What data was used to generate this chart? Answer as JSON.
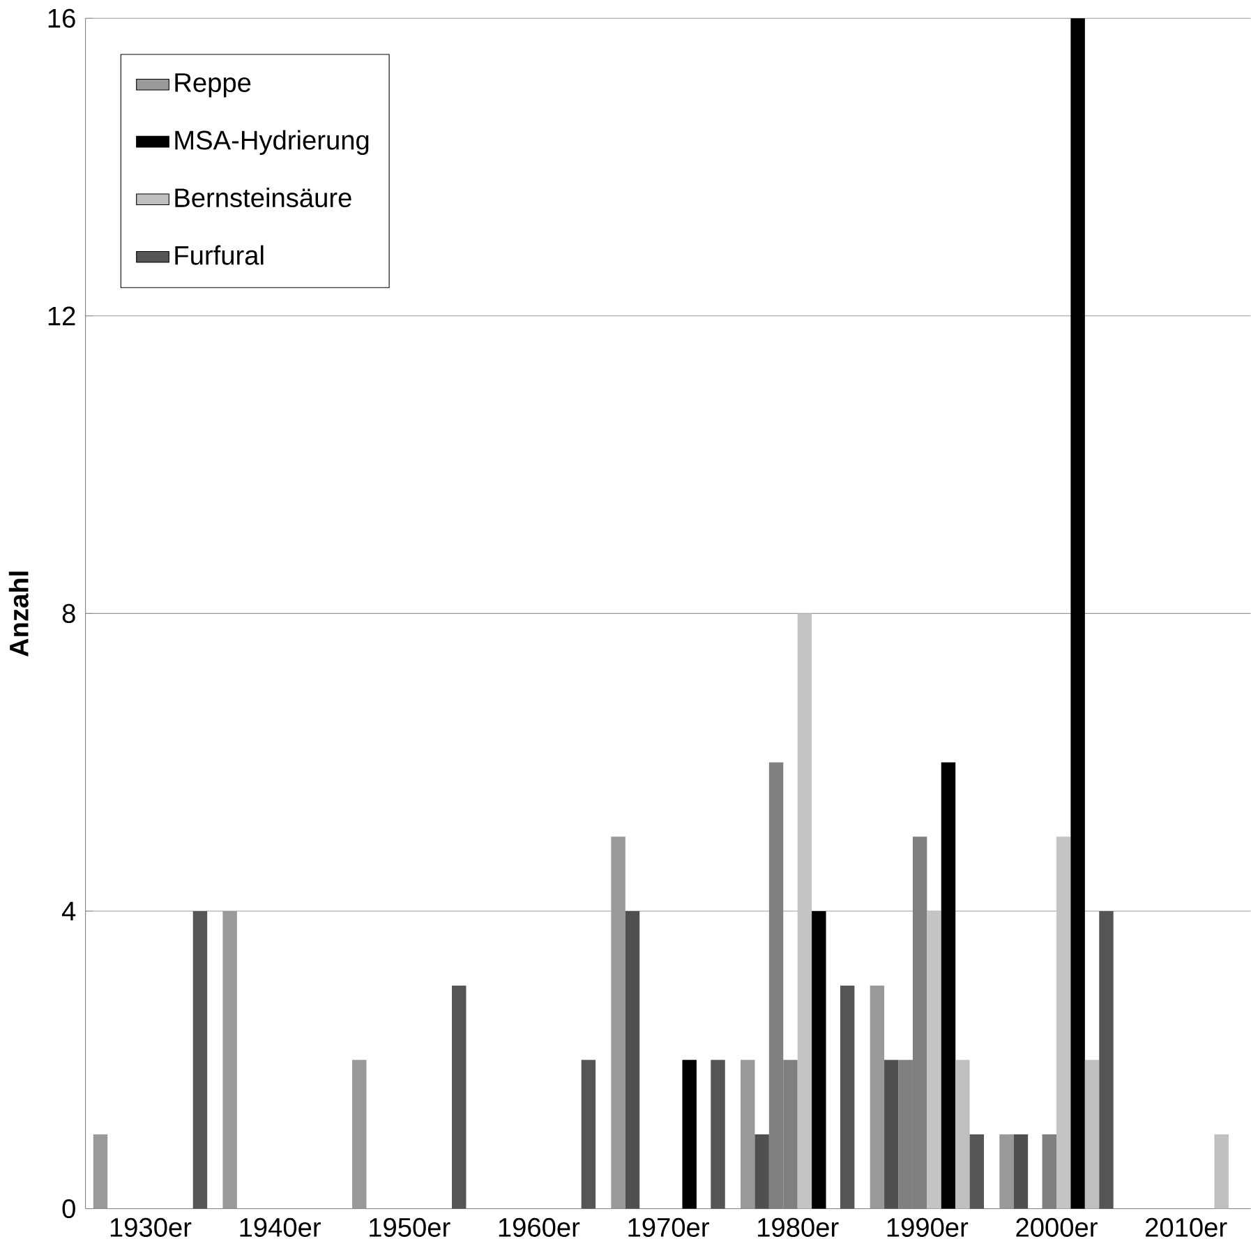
{
  "chart_data": {
    "type": "bar",
    "ylabel": "Anzahl",
    "categories": [
      "1930er",
      "1940er",
      "1950er",
      "1960er",
      "1970er",
      "1980er",
      "1990er",
      "2000er",
      "2010er"
    ],
    "series": [
      {
        "name": "Reppe",
        "color": "#999999",
        "values": [
          1,
          4,
          2,
          null,
          5,
          2,
          3,
          1,
          null
        ]
      },
      {
        "color": "#505050",
        "values": [
          null,
          null,
          null,
          null,
          4,
          1,
          2,
          1,
          null
        ]
      },
      {
        "color": "#808080",
        "values": [
          null,
          null,
          null,
          null,
          null,
          6,
          2,
          null,
          null
        ]
      },
      {
        "color": "#7f7f7f",
        "values": [
          null,
          null,
          null,
          null,
          null,
          2,
          5,
          1,
          null
        ]
      },
      {
        "color": "#c4c4c4",
        "values": [
          null,
          null,
          null,
          null,
          null,
          8,
          4,
          5,
          null
        ]
      },
      {
        "name": "MSA-Hydrierung",
        "color": "#000000",
        "values": [
          null,
          null,
          null,
          null,
          2,
          4,
          6,
          16,
          null
        ]
      },
      {
        "name": "Bernsteinsäure",
        "color": "#c0c0c0",
        "values": [
          null,
          null,
          null,
          null,
          null,
          null,
          2,
          2,
          1
        ]
      },
      {
        "name": "Furfural",
        "color": "#555555",
        "values": [
          4,
          null,
          3,
          2,
          2,
          3,
          1,
          4,
          null
        ]
      }
    ],
    "ylim": [
      0,
      16
    ],
    "yticks": [
      0,
      4,
      8,
      12,
      16
    ],
    "grid": "y",
    "legend": "top left"
  }
}
